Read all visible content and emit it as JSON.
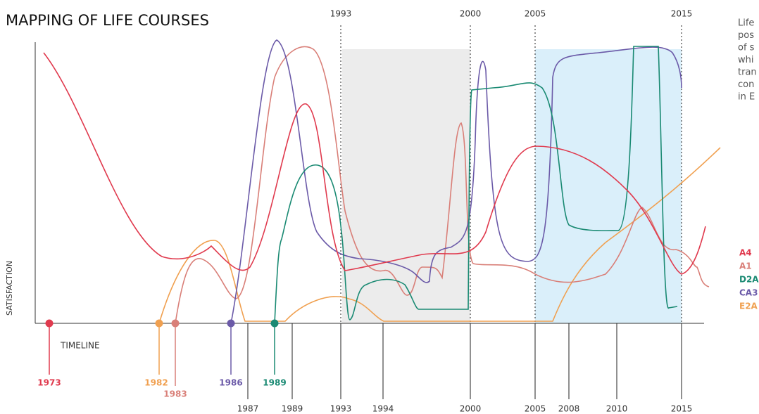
{
  "header": {
    "title": "MAPPING OF LIFE COURSES"
  },
  "top_markers": [
    "1993",
    "2000",
    "2005",
    "2015"
  ],
  "side_text": [
    "Life",
    "pos",
    "of s",
    "whi",
    "tran",
    "con",
    "in E"
  ],
  "legend": [
    "A4",
    "A1",
    "D2A",
    "CA3",
    "E2A"
  ],
  "axis": {
    "y_label": "SATISFACTION",
    "x_label": "TIMELINE"
  },
  "births": [
    "1973",
    "1982",
    "1983",
    "1986",
    "1989"
  ],
  "timeline_years": [
    "1987",
    "1989",
    "1993",
    "1994",
    "2000",
    "2005",
    "2008",
    "2010",
    "2015"
  ]
}
